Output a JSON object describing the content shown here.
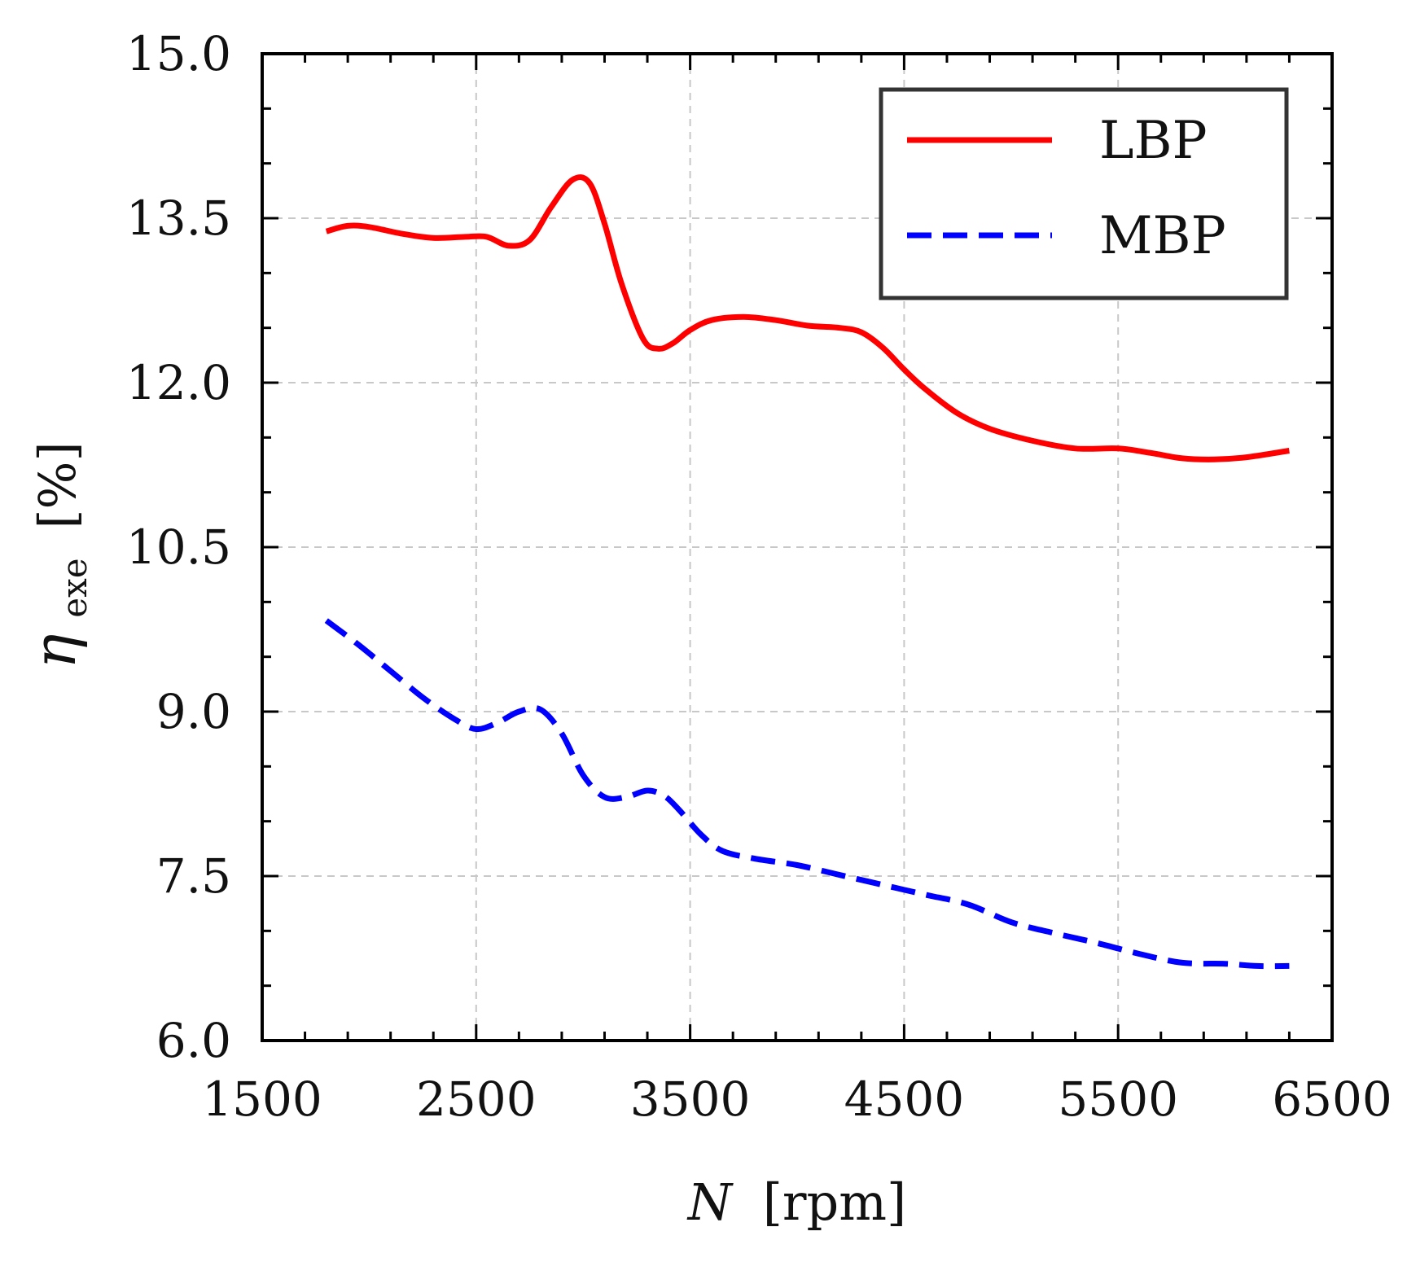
{
  "chart_data": {
    "type": "line",
    "title": "",
    "xlabel": "N [rpm]",
    "xlabel_var": "N",
    "xlabel_unit": "[rpm]",
    "ylabel": "η_exe [%]",
    "ylabel_symbol": "η",
    "ylabel_sub": "exe",
    "ylabel_unit": "[%]",
    "xlim": [
      1500,
      6500
    ],
    "ylim": [
      6.0,
      15.0
    ],
    "xticks": [
      1500,
      2500,
      3500,
      4500,
      5500,
      6500
    ],
    "xtick_labels": [
      "1500",
      "2500",
      "3500",
      "4500",
      "5500",
      "6500"
    ],
    "yticks": [
      6.0,
      7.5,
      9.0,
      10.5,
      12.0,
      13.5,
      15.0
    ],
    "ytick_labels": [
      "6.0",
      "7.5",
      "9.0",
      "10.5",
      "12.0",
      "13.5",
      "15.0"
    ],
    "grid": true,
    "legend_position": "top-right",
    "series": [
      {
        "name": "LBP",
        "color": "#ff0000",
        "style": "solid",
        "x": [
          1800,
          1900,
          2000,
          2150,
          2300,
          2450,
          2550,
          2650,
          2750,
          2850,
          2950,
          3030,
          3100,
          3180,
          3280,
          3350,
          3420,
          3500,
          3600,
          3750,
          3900,
          4050,
          4200,
          4300,
          4400,
          4500,
          4600,
          4750,
          4900,
          5100,
          5300,
          5500,
          5650,
          5800,
          5950,
          6100,
          6300
        ],
        "y": [
          13.38,
          13.43,
          13.42,
          13.36,
          13.32,
          13.33,
          13.33,
          13.25,
          13.3,
          13.6,
          13.85,
          13.82,
          13.45,
          12.9,
          12.4,
          12.31,
          12.36,
          12.48,
          12.57,
          12.6,
          12.57,
          12.52,
          12.5,
          12.46,
          12.32,
          12.12,
          11.94,
          11.72,
          11.58,
          11.47,
          11.4,
          11.4,
          11.36,
          11.31,
          11.3,
          11.32,
          11.38
        ]
      },
      {
        "name": "MBP",
        "color": "#0000ff",
        "style": "dashed",
        "x": [
          1800,
          1950,
          2100,
          2250,
          2400,
          2500,
          2600,
          2700,
          2800,
          2900,
          3000,
          3100,
          3200,
          3300,
          3380,
          3450,
          3550,
          3650,
          3800,
          4000,
          4200,
          4400,
          4600,
          4800,
          5000,
          5200,
          5400,
          5600,
          5800,
          6000,
          6150,
          6300
        ],
        "y": [
          9.83,
          9.61,
          9.37,
          9.13,
          8.93,
          8.84,
          8.9,
          9.0,
          9.02,
          8.8,
          8.42,
          8.22,
          8.22,
          8.28,
          8.23,
          8.1,
          7.88,
          7.73,
          7.66,
          7.6,
          7.51,
          7.42,
          7.33,
          7.24,
          7.08,
          6.98,
          6.89,
          6.79,
          6.71,
          6.7,
          6.68,
          6.68
        ]
      }
    ]
  }
}
